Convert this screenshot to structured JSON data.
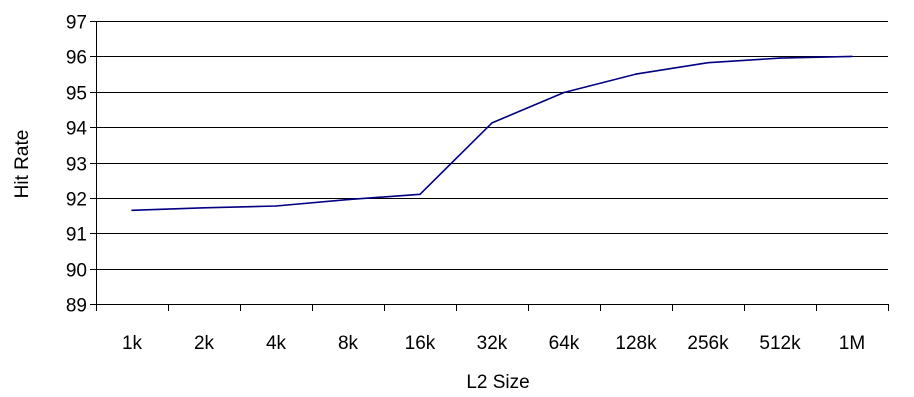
{
  "chart_data": {
    "type": "line",
    "title": "",
    "xlabel": "L2 Size",
    "ylabel": "Hit Rate",
    "categories": [
      "1k",
      "2k",
      "4k",
      "8k",
      "16k",
      "32k",
      "64k",
      "128k",
      "256k",
      "512k",
      "1M"
    ],
    "series": [
      {
        "values": [
          91.65,
          91.72,
          91.77,
          91.95,
          92.1,
          94.12,
          94.98,
          95.5,
          95.82,
          95.95,
          96.0
        ],
        "color": "#000080"
      }
    ],
    "yticks": [
      89,
      90,
      91,
      92,
      93,
      94,
      95,
      96,
      97
    ],
    "ylim": [
      89,
      97
    ],
    "grid": true,
    "legend": "none",
    "colors": {
      "gridline": "#000000",
      "axis": "#000000",
      "background": "#ffffff"
    }
  }
}
